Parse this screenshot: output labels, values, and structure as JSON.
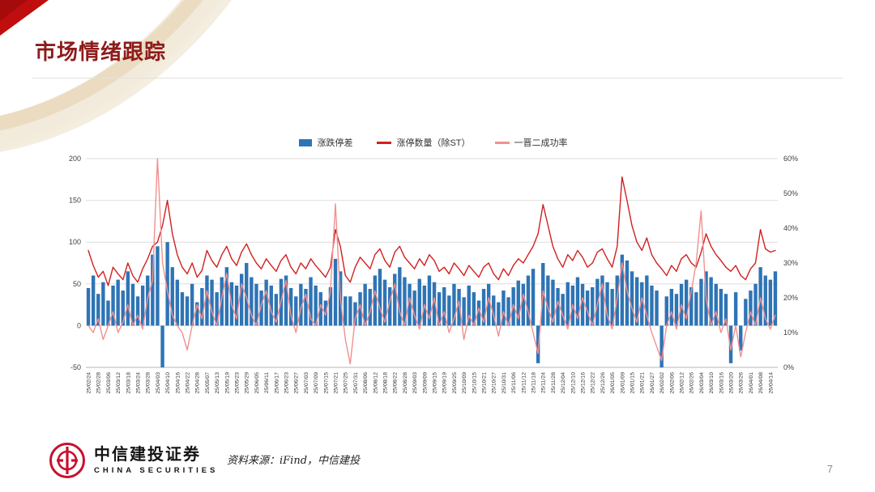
{
  "page": {
    "title": "市场情绪跟踪",
    "source_note": "资料来源：iFind，中信建投",
    "page_number": "7",
    "logo": {
      "cn": "中信建投证券",
      "en": "CHINA SECURITIES"
    }
  },
  "colors": {
    "title_red": "#8e1b1b",
    "brand_red": "#c8102e",
    "corner_red": "#c00d0d",
    "swoosh_tan": "#e8d7ba",
    "grid": "#dedede",
    "axis_text": "#404040"
  },
  "chart_data": {
    "type": "bar",
    "subtype": "bar+line combo, dual axis",
    "title": "",
    "legend_position": "top-center",
    "grid": true,
    "points_per_label": 2,
    "left_axis": {
      "min": -50,
      "max": 200,
      "ticks": [
        200,
        150,
        100,
        50,
        0,
        -50
      ]
    },
    "right_axis": {
      "min": 0,
      "max": 60,
      "ticks": [
        "60%",
        "50%",
        "40%",
        "30%",
        "20%",
        "10%",
        "0%"
      ]
    },
    "categories": [
      "25/02/24",
      "25/02/28",
      "25/03/06",
      "25/03/12",
      "25/03/18",
      "25/03/24",
      "25/03/28",
      "25/04/03",
      "25/04/10",
      "25/04/16",
      "25/04/22",
      "25/04/28",
      "25/05/07",
      "25/05/13",
      "25/05/19",
      "25/05/23",
      "25/05/29",
      "25/06/05",
      "25/06/11",
      "25/06/17",
      "25/06/23",
      "25/06/27",
      "25/07/03",
      "25/07/09",
      "25/07/15",
      "25/07/21",
      "25/07/25",
      "25/07/31",
      "25/08/06",
      "25/08/12",
      "25/08/18",
      "25/08/22",
      "25/08/28",
      "25/09/03",
      "25/09/09",
      "25/09/15",
      "25/09/19",
      "25/09/25",
      "25/10/09",
      "25/10/15",
      "25/10/21",
      "25/10/27",
      "25/10/31",
      "25/11/06",
      "25/11/12",
      "25/11/18",
      "25/11/24",
      "25/11/28",
      "25/12/04",
      "25/12/10",
      "25/12/16",
      "25/12/22",
      "25/12/26",
      "26/01/05",
      "26/01/09",
      "26/01/15",
      "26/01/21",
      "26/01/27",
      "26/02/02",
      "26/02/06",
      "26/02/12",
      "26/02/26",
      "26/03/04",
      "26/03/10",
      "26/03/16",
      "26/03/20",
      "26/03/26",
      "26/04/01",
      "26/04/08",
      "26/04/14"
    ],
    "series": [
      {
        "name": "涨跌停差",
        "type": "bar",
        "axis": "left",
        "color": "#2e74b5",
        "values": [
          45,
          60,
          38,
          52,
          30,
          48,
          55,
          42,
          65,
          50,
          35,
          48,
          60,
          85,
          95,
          -50,
          100,
          70,
          55,
          40,
          35,
          50,
          28,
          45,
          60,
          55,
          40,
          58,
          70,
          52,
          48,
          62,
          75,
          58,
          50,
          42,
          55,
          48,
          38,
          56,
          60,
          45,
          35,
          50,
          44,
          58,
          48,
          40,
          30,
          46,
          80,
          65,
          35,
          35,
          28,
          40,
          50,
          44,
          60,
          68,
          55,
          46,
          62,
          70,
          58,
          50,
          42,
          56,
          48,
          60,
          52,
          40,
          46,
          36,
          50,
          44,
          34,
          48,
          40,
          30,
          44,
          50,
          36,
          28,
          42,
          34,
          46,
          54,
          50,
          60,
          68,
          -45,
          75,
          60,
          55,
          45,
          38,
          52,
          48,
          58,
          50,
          42,
          46,
          56,
          60,
          52,
          44,
          60,
          85,
          78,
          65,
          58,
          52,
          60,
          48,
          42,
          -50,
          35,
          44,
          38,
          50,
          55,
          46,
          40,
          56,
          65,
          58,
          50,
          44,
          38,
          -45,
          40,
          -30,
          32,
          42,
          50,
          70,
          60,
          55,
          65
        ]
      },
      {
        "name": "涨停数量（除ST）",
        "type": "line",
        "axis": "left",
        "color": "#d02020",
        "values": [
          90,
          72,
          58,
          65,
          48,
          70,
          62,
          55,
          75,
          60,
          52,
          68,
          80,
          95,
          100,
          120,
          150,
          110,
          85,
          70,
          62,
          75,
          58,
          66,
          90,
          78,
          70,
          85,
          95,
          80,
          72,
          88,
          98,
          85,
          75,
          68,
          80,
          72,
          65,
          78,
          85,
          70,
          62,
          75,
          68,
          80,
          72,
          65,
          58,
          70,
          115,
          95,
          60,
          52,
          70,
          82,
          75,
          68,
          85,
          92,
          78,
          70,
          88,
          95,
          82,
          75,
          68,
          80,
          72,
          85,
          78,
          65,
          70,
          62,
          75,
          68,
          60,
          72,
          65,
          58,
          70,
          75,
          62,
          55,
          68,
          60,
          72,
          80,
          75,
          85,
          95,
          110,
          145,
          120,
          95,
          80,
          70,
          85,
          78,
          90,
          82,
          70,
          75,
          88,
          92,
          80,
          70,
          95,
          178,
          150,
          120,
          100,
          90,
          105,
          85,
          75,
          68,
          60,
          72,
          65,
          80,
          85,
          75,
          70,
          88,
          110,
          95,
          85,
          78,
          70,
          65,
          72,
          60,
          55,
          68,
          75,
          115,
          92,
          88,
          90
        ]
      },
      {
        "name": "一晋二成功率",
        "type": "line",
        "axis": "right",
        "color": "#f29090",
        "values": [
          12,
          10,
          14,
          8,
          12,
          16,
          10,
          13,
          18,
          12,
          15,
          11,
          20,
          25,
          60,
          30,
          22,
          15,
          12,
          10,
          5,
          12,
          18,
          14,
          22,
          16,
          12,
          20,
          27,
          18,
          14,
          24,
          20,
          15,
          12,
          18,
          22,
          16,
          13,
          19,
          25,
          15,
          10,
          17,
          21,
          14,
          12,
          18,
          15,
          22,
          47,
          20,
          8,
          1,
          14,
          18,
          12,
          16,
          22,
          17,
          13,
          19,
          24,
          16,
          12,
          20,
          15,
          11,
          18,
          14,
          20,
          12,
          16,
          10,
          14,
          19,
          8,
          15,
          12,
          17,
          13,
          20,
          15,
          9,
          16,
          12,
          18,
          14,
          21,
          16,
          10,
          4,
          22,
          17,
          13,
          19,
          15,
          11,
          18,
          14,
          20,
          16,
          12,
          18,
          24,
          15,
          11,
          20,
          30,
          22,
          17,
          13,
          20,
          15,
          10,
          6,
          2,
          12,
          16,
          11,
          18,
          14,
          22,
          30,
          45,
          20,
          12,
          16,
          10,
          14,
          5,
          12,
          3,
          10,
          16,
          12,
          20,
          14,
          11,
          15
        ]
      }
    ]
  }
}
